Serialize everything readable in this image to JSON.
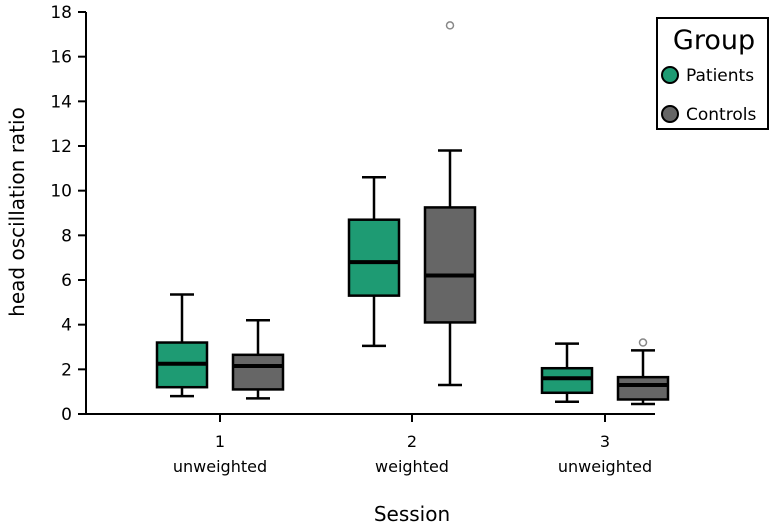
{
  "chart_data": {
    "type": "box",
    "title": "",
    "xlabel": "Session",
    "ylabel": "head oscillation ratio",
    "ylim": [
      0,
      18
    ],
    "yticks": [
      0,
      2,
      4,
      6,
      8,
      10,
      12,
      14,
      16,
      18
    ],
    "grid": false,
    "legend_position": "top-right",
    "categories": [
      {
        "id": "1",
        "sub": "unweighted"
      },
      {
        "id": "2",
        "sub": "weighted"
      },
      {
        "id": "3",
        "sub": "unweighted"
      }
    ],
    "legend": {
      "title": "Group"
    },
    "series": [
      {
        "name": "Patients",
        "color": "#1e9b73",
        "boxes": [
          {
            "min": 0.8,
            "q1": 1.2,
            "median": 2.25,
            "q3": 3.2,
            "max": 5.35,
            "outliers": []
          },
          {
            "min": 3.05,
            "q1": 5.3,
            "median": 6.8,
            "q3": 8.7,
            "max": 10.6,
            "outliers": []
          },
          {
            "min": 0.55,
            "q1": 0.95,
            "median": 1.6,
            "q3": 2.05,
            "max": 3.15,
            "outliers": []
          }
        ]
      },
      {
        "name": "Controls",
        "color": "#666666",
        "boxes": [
          {
            "min": 0.7,
            "q1": 1.1,
            "median": 2.15,
            "q3": 2.65,
            "max": 4.2,
            "outliers": []
          },
          {
            "min": 1.3,
            "q1": 4.1,
            "median": 6.2,
            "q3": 9.25,
            "max": 11.8,
            "outliers": [
              17.4
            ]
          },
          {
            "min": 0.45,
            "q1": 0.65,
            "median": 1.3,
            "q3": 1.65,
            "max": 2.85,
            "outliers": [
              3.2
            ]
          }
        ]
      }
    ]
  }
}
